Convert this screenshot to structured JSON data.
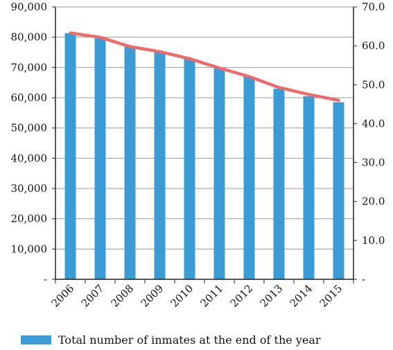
{
  "chart_data": {
    "type": "bar",
    "categories": [
      "2006",
      "2007",
      "2008",
      "2009",
      "2010",
      "2011",
      "2012",
      "2013",
      "2014",
      "2015"
    ],
    "series": [
      {
        "name": "Total number of inmates at the end of the year",
        "type": "bar",
        "axis": "left",
        "color": "#3a9bd5",
        "values": [
          81300,
          79800,
          76800,
          75000,
          72900,
          70000,
          67000,
          63000,
          60500,
          58500
        ]
      },
      {
        "type": "line",
        "axis": "right",
        "color": "#ef6b6b",
        "values": [
          63.3,
          62.2,
          59.8,
          58.5,
          56.7,
          54.3,
          52.1,
          49.3,
          47.5,
          46.0
        ]
      }
    ],
    "y_left": {
      "ylim": [
        0,
        90000
      ],
      "ticks": [
        0,
        10000,
        20000,
        30000,
        40000,
        50000,
        60000,
        70000,
        80000,
        90000
      ],
      "tick_labels": [
        "-",
        "10,000",
        "20,000",
        "30,000",
        "40,000",
        "50,000",
        "60,000",
        "70,000",
        "80,000",
        "90,000"
      ]
    },
    "y_right": {
      "ylim": [
        0,
        70
      ],
      "ticks": [
        0,
        10,
        20,
        30,
        40,
        50,
        60,
        70
      ],
      "tick_labels": [
        "-",
        "10.0",
        "20.0",
        "30.0",
        "40.0",
        "50.0",
        "60.0",
        "70.0"
      ]
    },
    "grid": true,
    "legend_position": "bottom",
    "title": "",
    "xlabel": "",
    "ylabel": ""
  }
}
